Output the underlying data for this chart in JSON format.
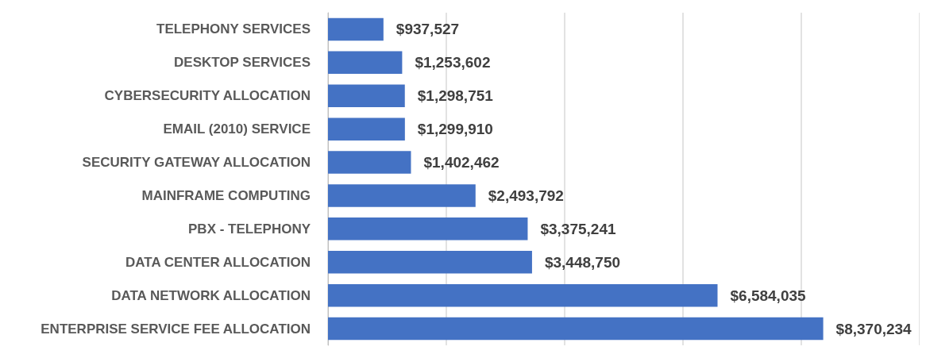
{
  "chart_data": {
    "type": "bar",
    "orientation": "horizontal",
    "categories": [
      "TELEPHONY SERVICES",
      "DESKTOP SERVICES",
      "CYBERSECURITY ALLOCATION",
      "EMAIL (2010) SERVICE",
      "SECURITY GATEWAY ALLOCATION",
      "MAINFRAME COMPUTING",
      "PBX - TELEPHONY",
      "DATA CENTER ALLOCATION",
      "DATA NETWORK ALLOCATION",
      "ENTERPRISE SERVICE FEE ALLOCATION"
    ],
    "values": [
      937527,
      1253602,
      1298751,
      1299910,
      1402462,
      2493792,
      3375241,
      3448750,
      6584035,
      8370234
    ],
    "value_labels": [
      "$937,527",
      "$1,253,602",
      "$1,298,751",
      "$1,299,910",
      "$1,402,462",
      "$2,493,792",
      "$3,375,241",
      "$3,448,750",
      "$6,584,035",
      "$8,370,234"
    ],
    "color": "#4472c4",
    "xlim": [
      0,
      10000000
    ],
    "xticks": [
      {
        "value": 0,
        "label": null
      },
      {
        "value": 2000000,
        "label": null
      },
      {
        "value": 4000000,
        "label": null
      },
      {
        "value": 6000000,
        "label": null
      },
      {
        "value": 8000000,
        "label": null
      },
      {
        "value": 10000000,
        "label": null
      }
    ],
    "grid": "x",
    "tick_labels": "y"
  }
}
